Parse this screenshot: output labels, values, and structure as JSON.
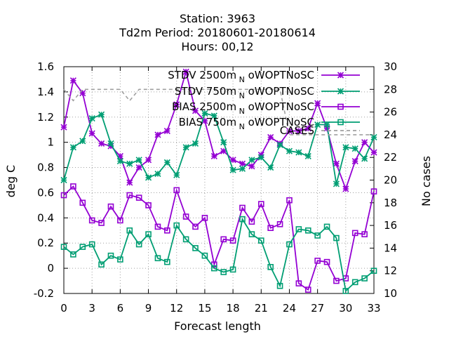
{
  "chart_data": {
    "type": "line",
    "title_lines": [
      "Station:      3963",
      "Td2m   Period: 20180601-20180614",
      "Hours:  00,12"
    ],
    "xlabel": "Forecast length",
    "ylabel": "deg C",
    "y2label": "No cases",
    "xlim": [
      0,
      33
    ],
    "ylim": [
      -0.2,
      1.6
    ],
    "y2lim": [
      10,
      30
    ],
    "grid": true,
    "legend_position": "top-right",
    "xticks": [
      "0",
      "3",
      "6",
      "9",
      "12",
      "15",
      "18",
      "21",
      "24",
      "27",
      "30",
      "33"
    ],
    "yticks": [
      "-0.2",
      "0",
      "0.2",
      "0.4",
      "0.6",
      "0.8",
      "1",
      "1.2",
      "1.4",
      "1.6"
    ],
    "y2ticks": [
      "10",
      "12",
      "14",
      "16",
      "18",
      "20",
      "22",
      "24",
      "26",
      "28",
      "30"
    ],
    "x": [
      0,
      1,
      2,
      3,
      4,
      5,
      6,
      7,
      8,
      9,
      10,
      11,
      12,
      13,
      14,
      15,
      16,
      17,
      18,
      19,
      20,
      21,
      22,
      23,
      24,
      25,
      26,
      27,
      28,
      29,
      30,
      31,
      32,
      33
    ],
    "series": [
      {
        "name": "STDV 2500m",
        "name_sub": "N",
        "name_tail": "oWOPTNoSC",
        "color": "#9400d3",
        "marker": "x",
        "values": [
          1.12,
          1.49,
          1.39,
          1.07,
          0.99,
          0.97,
          0.89,
          0.68,
          0.8,
          0.86,
          1.06,
          1.09,
          1.3,
          1.56,
          1.25,
          1.17,
          0.89,
          0.93,
          0.86,
          0.83,
          0.81,
          0.9,
          1.04,
          0.99,
          1.09,
          1.09,
          1.11,
          1.31,
          1.11,
          0.83,
          0.63,
          0.85,
          1.0,
          0.92
        ]
      },
      {
        "name": "STDV 750m",
        "name_sub": "N",
        "name_tail": "oWOPTNoSC",
        "color": "#009e73",
        "marker": "x",
        "values": [
          0.7,
          0.96,
          1.01,
          1.19,
          1.22,
          0.99,
          0.85,
          0.83,
          0.86,
          0.72,
          0.75,
          0.84,
          0.74,
          0.96,
          0.99,
          1.23,
          1.21,
          1.0,
          0.78,
          0.79,
          0.86,
          0.88,
          0.8,
          0.98,
          0.93,
          0.92,
          0.89,
          1.14,
          1.14,
          0.67,
          0.96,
          0.95,
          0.87,
          1.04
        ]
      },
      {
        "name": "BIAS 2500m",
        "name_sub": "N",
        "name_tail": "oWOPTNoSC",
        "color": "#9400d3",
        "marker": "square",
        "values": [
          0.58,
          0.65,
          0.52,
          0.38,
          0.36,
          0.49,
          0.38,
          0.58,
          0.56,
          0.5,
          0.33,
          0.3,
          0.62,
          0.41,
          0.33,
          0.4,
          0.03,
          0.23,
          0.22,
          0.48,
          0.37,
          0.51,
          0.32,
          0.35,
          0.54,
          -0.12,
          -0.17,
          0.06,
          0.05,
          -0.1,
          -0.08,
          0.28,
          0.27,
          0.61
        ]
      },
      {
        "name": "BIAS 750m",
        "name_sub": "N",
        "name_tail": "oWOPTNoSC",
        "color": "#009e73",
        "marker": "square",
        "values": [
          0.17,
          0.11,
          0.17,
          0.19,
          0.03,
          0.1,
          0.07,
          0.3,
          0.19,
          0.27,
          0.08,
          0.05,
          0.34,
          0.23,
          0.16,
          0.1,
          0.0,
          -0.03,
          -0.01,
          0.39,
          0.27,
          0.22,
          0.01,
          -0.14,
          0.19,
          0.31,
          0.3,
          0.26,
          0.33,
          0.24,
          -0.18,
          -0.11,
          -0.08,
          -0.02
        ]
      },
      {
        "name": "CASES",
        "color": "#a0a0a0",
        "dashed": true,
        "axis": "y2",
        "values": [
          28,
          27,
          28,
          28,
          28,
          28,
          28,
          27,
          28,
          28,
          28,
          28,
          28,
          28,
          28,
          28,
          28,
          28,
          28,
          28,
          28,
          28,
          28,
          28,
          24,
          24,
          24,
          24,
          24,
          24,
          24,
          24,
          24,
          24
        ]
      }
    ]
  }
}
